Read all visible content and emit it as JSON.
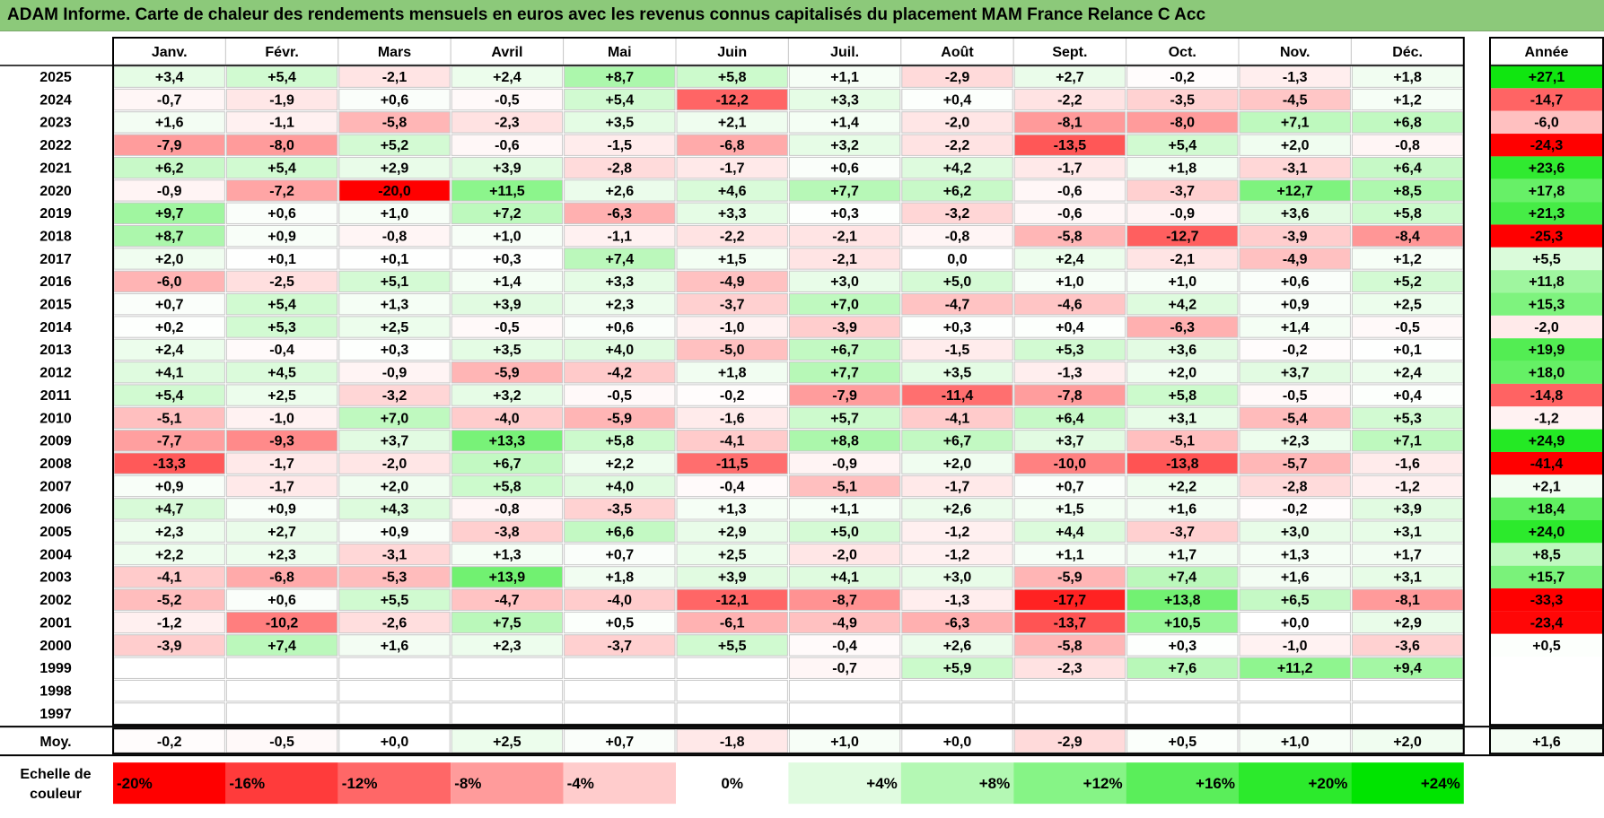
{
  "title": "ADAM Informe. Carte de chaleur des rendements mensuels en euros avec les revenus connus capitalisés du placement MAM France Relance C Acc",
  "chart_data": {
    "type": "heatmap",
    "months": [
      "Janv.",
      "Févr.",
      "Mars",
      "Avril",
      "Mai",
      "Juin",
      "Juil.",
      "Août",
      "Sept.",
      "Oct.",
      "Nov.",
      "Déc."
    ],
    "year_header": "Année",
    "rows": [
      {
        "year": "2025",
        "m": [
          "+3,4",
          "+5,4",
          "-2,1",
          "+2,4",
          "+8,7",
          "+5,8",
          "+1,1",
          "-2,9",
          "+2,7",
          "-0,2",
          "-1,3",
          "+1,8"
        ],
        "y": "+27,1"
      },
      {
        "year": "2024",
        "m": [
          "-0,7",
          "-1,9",
          "+0,6",
          "-0,5",
          "+5,4",
          "-12,2",
          "+3,3",
          "+0,4",
          "-2,2",
          "-3,5",
          "-4,5",
          "+1,2"
        ],
        "y": "-14,7"
      },
      {
        "year": "2023",
        "m": [
          "+1,6",
          "-1,1",
          "-5,8",
          "-2,3",
          "+3,5",
          "+2,1",
          "+1,4",
          "-2,0",
          "-8,1",
          "-8,0",
          "+7,1",
          "+6,8"
        ],
        "y": "-6,0"
      },
      {
        "year": "2022",
        "m": [
          "-7,9",
          "-8,0",
          "+5,2",
          "-0,6",
          "-1,5",
          "-6,8",
          "+3,2",
          "-2,2",
          "-13,5",
          "+5,4",
          "+2,0",
          "-0,8"
        ],
        "y": "-24,3"
      },
      {
        "year": "2021",
        "m": [
          "+6,2",
          "+5,4",
          "+2,9",
          "+3,9",
          "-2,8",
          "-1,7",
          "+0,6",
          "+4,2",
          "-1,7",
          "+1,8",
          "-3,1",
          "+6,4"
        ],
        "y": "+23,6"
      },
      {
        "year": "2020",
        "m": [
          "-0,9",
          "-7,2",
          "-20,0",
          "+11,5",
          "+2,6",
          "+4,6",
          "+7,7",
          "+6,2",
          "-0,6",
          "-3,7",
          "+12,7",
          "+8,5"
        ],
        "y": "+17,8"
      },
      {
        "year": "2019",
        "m": [
          "+9,7",
          "+0,6",
          "+1,0",
          "+7,2",
          "-6,3",
          "+3,3",
          "+0,3",
          "-3,2",
          "-0,6",
          "-0,9",
          "+3,6",
          "+5,8"
        ],
        "y": "+21,3"
      },
      {
        "year": "2018",
        "m": [
          "+8,7",
          "+0,9",
          "-0,8",
          "+1,0",
          "-1,1",
          "-2,2",
          "-2,1",
          "-0,8",
          "-5,8",
          "-12,7",
          "-3,9",
          "-8,4"
        ],
        "y": "-25,3"
      },
      {
        "year": "2017",
        "m": [
          "+2,0",
          "+0,1",
          "+0,1",
          "+0,3",
          "+7,4",
          "+1,5",
          "-2,1",
          "0,0",
          "+2,4",
          "-2,1",
          "-4,9",
          "+1,2"
        ],
        "y": "+5,5"
      },
      {
        "year": "2016",
        "m": [
          "-6,0",
          "-2,5",
          "+5,1",
          "+1,4",
          "+3,3",
          "-4,9",
          "+3,0",
          "+5,0",
          "+1,0",
          "+1,0",
          "+0,6",
          "+5,2"
        ],
        "y": "+11,8"
      },
      {
        "year": "2015",
        "m": [
          "+0,7",
          "+5,4",
          "+1,3",
          "+3,9",
          "+2,3",
          "-3,7",
          "+7,0",
          "-4,7",
          "-4,6",
          "+4,2",
          "+0,9",
          "+2,5"
        ],
        "y": "+15,3"
      },
      {
        "year": "2014",
        "m": [
          "+0,2",
          "+5,3",
          "+2,5",
          "-0,5",
          "+0,6",
          "-1,0",
          "-3,9",
          "+0,3",
          "+0,4",
          "-6,3",
          "+1,4",
          "-0,5"
        ],
        "y": "-2,0"
      },
      {
        "year": "2013",
        "m": [
          "+2,4",
          "-0,4",
          "+0,3",
          "+3,5",
          "+4,0",
          "-5,0",
          "+6,7",
          "-1,5",
          "+5,3",
          "+3,6",
          "-0,2",
          "+0,1"
        ],
        "y": "+19,9"
      },
      {
        "year": "2012",
        "m": [
          "+4,1",
          "+4,5",
          "-0,9",
          "-5,9",
          "-4,2",
          "+1,8",
          "+7,7",
          "+3,5",
          "-1,3",
          "+2,0",
          "+3,7",
          "+2,4"
        ],
        "y": "+18,0"
      },
      {
        "year": "2011",
        "m": [
          "+5,4",
          "+2,5",
          "-3,2",
          "+3,2",
          "-0,5",
          "-0,2",
          "-7,9",
          "-11,4",
          "-7,8",
          "+5,8",
          "-0,5",
          "+0,4"
        ],
        "y": "-14,8"
      },
      {
        "year": "2010",
        "m": [
          "-5,1",
          "-1,0",
          "+7,0",
          "-4,0",
          "-5,9",
          "-1,6",
          "+5,7",
          "-4,1",
          "+6,4",
          "+3,1",
          "-5,4",
          "+5,3"
        ],
        "y": "-1,2"
      },
      {
        "year": "2009",
        "m": [
          "-7,7",
          "-9,3",
          "+3,7",
          "+13,3",
          "+5,8",
          "-4,1",
          "+8,8",
          "+6,7",
          "+3,7",
          "-5,1",
          "+2,3",
          "+7,1"
        ],
        "y": "+24,9"
      },
      {
        "year": "2008",
        "m": [
          "-13,3",
          "-1,7",
          "-2,0",
          "+6,7",
          "+2,2",
          "-11,5",
          "-0,9",
          "+2,0",
          "-10,0",
          "-13,8",
          "-5,7",
          "-1,6"
        ],
        "y": "-41,4"
      },
      {
        "year": "2007",
        "m": [
          "+0,9",
          "-1,7",
          "+2,0",
          "+5,8",
          "+4,0",
          "-0,4",
          "-5,1",
          "-1,7",
          "+0,7",
          "+2,2",
          "-2,8",
          "-1,2"
        ],
        "y": "+2,1"
      },
      {
        "year": "2006",
        "m": [
          "+4,7",
          "+0,9",
          "+4,3",
          "-0,8",
          "-3,5",
          "+1,3",
          "+1,1",
          "+2,6",
          "+1,5",
          "+1,6",
          "-0,2",
          "+3,9"
        ],
        "y": "+18,4"
      },
      {
        "year": "2005",
        "m": [
          "+2,3",
          "+2,7",
          "+0,9",
          "-3,8",
          "+6,6",
          "+2,9",
          "+5,0",
          "-1,2",
          "+4,4",
          "-3,7",
          "+3,0",
          "+3,1"
        ],
        "y": "+24,0"
      },
      {
        "year": "2004",
        "m": [
          "+2,2",
          "+2,3",
          "-3,1",
          "+1,3",
          "+0,7",
          "+2,5",
          "-2,0",
          "-1,2",
          "+1,1",
          "+1,7",
          "+1,3",
          "+1,7"
        ],
        "y": "+8,5"
      },
      {
        "year": "2003",
        "m": [
          "-4,1",
          "-6,8",
          "-5,3",
          "+13,9",
          "+1,8",
          "+3,9",
          "+4,1",
          "+3,0",
          "-5,9",
          "+7,4",
          "+1,6",
          "+3,1"
        ],
        "y": "+15,7"
      },
      {
        "year": "2002",
        "m": [
          "-5,2",
          "+0,6",
          "+5,5",
          "-4,7",
          "-4,0",
          "-12,1",
          "-8,7",
          "-1,3",
          "-17,7",
          "+13,8",
          "+6,5",
          "-8,1"
        ],
        "y": "-33,3"
      },
      {
        "year": "2001",
        "m": [
          "-1,2",
          "-10,2",
          "-2,6",
          "+7,5",
          "+0,5",
          "-6,1",
          "-4,9",
          "-6,3",
          "-13,7",
          "+10,5",
          "+0,0",
          "+2,9"
        ],
        "y": "-23,4"
      },
      {
        "year": "2000",
        "m": [
          "-3,9",
          "+7,4",
          "+1,6",
          "+2,3",
          "-3,7",
          "+5,5",
          "-0,4",
          "+2,6",
          "-5,8",
          "+0,3",
          "-1,0",
          "-3,6"
        ],
        "y": "+0,5"
      },
      {
        "year": "1999",
        "m": [
          "",
          "",
          "",
          "",
          "",
          "",
          "-0,7",
          "+5,9",
          "-2,3",
          "+7,6",
          "+11,2",
          "+9,4"
        ],
        "y": ""
      },
      {
        "year": "1998",
        "m": [
          "",
          "",
          "",
          "",
          "",
          "",
          "",
          "",
          "",
          "",
          "",
          ""
        ],
        "y": ""
      },
      {
        "year": "1997",
        "m": [
          "",
          "",
          "",
          "",
          "",
          "",
          "",
          "",
          "",
          "",
          "",
          ""
        ],
        "y": ""
      }
    ],
    "avg_label": "Moy.",
    "avg": [
      "-0,2",
      "-0,5",
      "+0,0",
      "+2,5",
      "+0,7",
      "-1,8",
      "+1,0",
      "+0,0",
      "-2,9",
      "+0,5",
      "+1,0",
      "+2,0"
    ],
    "avg_year": "+1,6",
    "scale_label_1": "Echelle de",
    "scale_label_2": "couleur",
    "scale": [
      {
        "label": "-20%",
        "value": -20,
        "color": "#ff0000"
      },
      {
        "label": "-16%",
        "value": -16,
        "color": "#ff3b3b"
      },
      {
        "label": "-12%",
        "value": -12,
        "color": "#ff6767"
      },
      {
        "label": "-8%",
        "value": -8,
        "color": "#ff9b9b"
      },
      {
        "label": "-4%",
        "value": -4,
        "color": "#ffcccc"
      },
      {
        "label": "0%",
        "value": 0,
        "color": "#ffffff"
      },
      {
        "label": "+4%",
        "value": 4,
        "color": "#e0fbe0"
      },
      {
        "label": "+8%",
        "value": 8,
        "color": "#b4f8b4"
      },
      {
        "label": "+12%",
        "value": 12,
        "color": "#86f486"
      },
      {
        "label": "+16%",
        "value": 16,
        "color": "#5aee5a"
      },
      {
        "label": "+20%",
        "value": 20,
        "color": "#2cea2c"
      },
      {
        "label": "+24%",
        "value": 24,
        "color": "#00e400"
      }
    ]
  }
}
